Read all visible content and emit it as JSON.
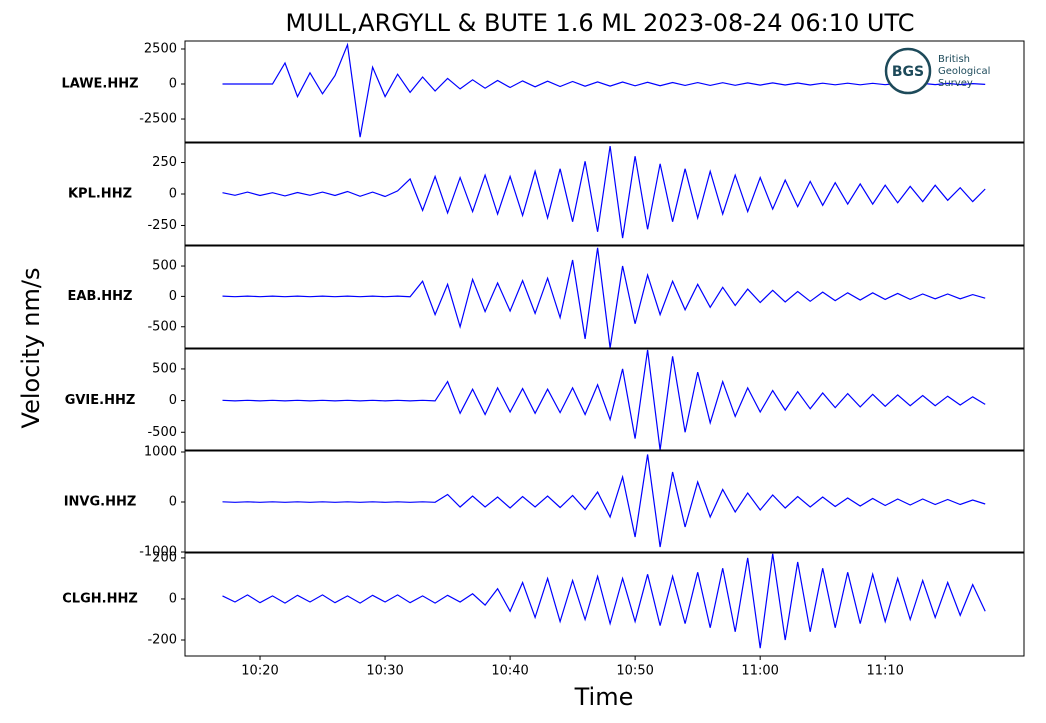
{
  "logo": {
    "initials": "BGS",
    "lines": [
      "British",
      "Geological",
      "Survey"
    ]
  },
  "chart_data": [
    {
      "type": "line",
      "title": "MULL,ARGYLL & BUTE 1.6 ML   2023-08-24 06:10 UTC",
      "ylabel": "Velocity nm/s",
      "x": [
        17,
        18,
        19,
        20,
        21,
        22,
        23,
        24,
        25,
        26,
        27,
        28,
        29,
        30,
        31,
        32,
        33,
        34,
        35,
        36,
        37,
        38,
        39,
        40,
        41,
        42,
        43,
        44,
        45,
        46,
        47,
        48,
        49,
        50,
        51,
        52,
        53,
        54,
        55,
        56,
        57,
        58,
        59,
        60,
        61,
        62,
        63,
        64,
        65,
        66,
        67,
        68,
        69,
        70,
        71,
        72,
        73,
        74,
        75,
        76,
        77,
        78
      ],
      "xlim": [
        14,
        81.1
      ],
      "ylim": [
        -4140,
        3070
      ],
      "yticks": [
        2500,
        0,
        -2500
      ],
      "series": [
        {
          "name": "LAWE.HHZ",
          "color": "#0000ff",
          "values": [
            0,
            0,
            0,
            0,
            0,
            1500,
            -900,
            800,
            -700,
            600,
            2800,
            -3800,
            1200,
            -900,
            700,
            -600,
            500,
            -500,
            400,
            -350,
            300,
            -300,
            250,
            -250,
            220,
            -200,
            200,
            -180,
            180,
            -160,
            150,
            -150,
            140,
            -130,
            120,
            -120,
            110,
            -100,
            100,
            -100,
            90,
            -90,
            80,
            -80,
            80,
            -70,
            70,
            -70,
            60,
            -60,
            60,
            -60,
            50,
            -50,
            50,
            -50,
            40,
            -40,
            40,
            -40,
            30,
            -30
          ]
        }
      ]
    },
    {
      "type": "line",
      "x": [
        17,
        18,
        19,
        20,
        21,
        22,
        23,
        24,
        25,
        26,
        27,
        28,
        29,
        30,
        31,
        32,
        33,
        34,
        35,
        36,
        37,
        38,
        39,
        40,
        41,
        42,
        43,
        44,
        45,
        46,
        47,
        48,
        49,
        50,
        51,
        52,
        53,
        54,
        55,
        56,
        57,
        58,
        59,
        60,
        61,
        62,
        63,
        64,
        65,
        66,
        67,
        68,
        69,
        70,
        71,
        72,
        73,
        74,
        75,
        76,
        77,
        78
      ],
      "xlim": [
        14,
        81.1
      ],
      "ylim": [
        -405,
        405
      ],
      "yticks": [
        250,
        0,
        -250
      ],
      "series": [
        {
          "name": "KPL.HHZ",
          "color": "#0000ff",
          "values": [
            10,
            -10,
            15,
            -12,
            10,
            -15,
            12,
            -10,
            15,
            -12,
            20,
            -18,
            15,
            -20,
            25,
            120,
            -130,
            140,
            -150,
            130,
            -140,
            150,
            -160,
            140,
            -170,
            180,
            -190,
            200,
            -220,
            260,
            -300,
            380,
            -350,
            300,
            -280,
            240,
            -220,
            200,
            -190,
            180,
            -160,
            150,
            -140,
            130,
            -120,
            110,
            -100,
            100,
            -90,
            90,
            -80,
            80,
            -80,
            70,
            -70,
            60,
            -60,
            70,
            -50,
            50,
            -60,
            40
          ]
        }
      ]
    },
    {
      "type": "line",
      "x": [
        17,
        18,
        19,
        20,
        21,
        22,
        23,
        24,
        25,
        26,
        27,
        28,
        29,
        30,
        31,
        32,
        33,
        34,
        35,
        36,
        37,
        38,
        39,
        40,
        41,
        42,
        43,
        44,
        45,
        46,
        47,
        48,
        49,
        50,
        51,
        52,
        53,
        54,
        55,
        56,
        57,
        58,
        59,
        60,
        61,
        62,
        63,
        64,
        65,
        66,
        67,
        68,
        69,
        70,
        71,
        72,
        73,
        74,
        75,
        76,
        77,
        78
      ],
      "xlim": [
        14,
        81.1
      ],
      "ylim": [
        -850,
        830
      ],
      "yticks": [
        500,
        0,
        -500
      ],
      "series": [
        {
          "name": "EAB.HHZ",
          "color": "#0000ff",
          "values": [
            5,
            -5,
            5,
            -5,
            5,
            -5,
            5,
            -5,
            5,
            -5,
            5,
            -5,
            5,
            -5,
            5,
            -5,
            250,
            -300,
            200,
            -500,
            280,
            -250,
            220,
            -240,
            260,
            -280,
            300,
            -350,
            600,
            -700,
            800,
            -850,
            500,
            -450,
            350,
            -300,
            250,
            -220,
            200,
            -180,
            150,
            -150,
            120,
            -100,
            100,
            -90,
            80,
            -80,
            70,
            -70,
            60,
            -60,
            60,
            -50,
            50,
            -50,
            40,
            -40,
            40,
            -40,
            30,
            -30
          ]
        }
      ]
    },
    {
      "type": "line",
      "x": [
        17,
        18,
        19,
        20,
        21,
        22,
        23,
        24,
        25,
        26,
        27,
        28,
        29,
        30,
        31,
        32,
        33,
        34,
        35,
        36,
        37,
        38,
        39,
        40,
        41,
        42,
        43,
        44,
        45,
        46,
        47,
        48,
        49,
        50,
        51,
        52,
        53,
        54,
        55,
        56,
        57,
        58,
        59,
        60,
        61,
        62,
        63,
        64,
        65,
        66,
        67,
        68,
        69,
        70,
        71,
        72,
        73,
        74,
        75,
        76,
        77,
        78
      ],
      "xlim": [
        14,
        81.1
      ],
      "ylim": [
        -780,
        815
      ],
      "yticks": [
        500,
        0,
        -500
      ],
      "series": [
        {
          "name": "GVIE.HHZ",
          "color": "#0000ff",
          "values": [
            5,
            -5,
            5,
            -5,
            5,
            -5,
            5,
            -5,
            5,
            -5,
            5,
            -5,
            5,
            -5,
            5,
            -5,
            5,
            -5,
            300,
            -200,
            180,
            -220,
            200,
            -180,
            190,
            -200,
            180,
            -190,
            200,
            -220,
            250,
            -300,
            500,
            -600,
            800,
            -780,
            700,
            -500,
            450,
            -350,
            300,
            -250,
            200,
            -180,
            160,
            -150,
            140,
            -130,
            120,
            -110,
            110,
            -100,
            100,
            -90,
            90,
            -80,
            80,
            -80,
            70,
            -70,
            60,
            -60
          ]
        }
      ]
    },
    {
      "type": "line",
      "x": [
        17,
        18,
        19,
        20,
        21,
        22,
        23,
        24,
        25,
        26,
        27,
        28,
        29,
        30,
        31,
        32,
        33,
        34,
        35,
        36,
        37,
        38,
        39,
        40,
        41,
        42,
        43,
        44,
        45,
        46,
        47,
        48,
        49,
        50,
        51,
        52,
        53,
        54,
        55,
        56,
        57,
        58,
        59,
        60,
        61,
        62,
        63,
        64,
        65,
        66,
        67,
        68,
        69,
        70,
        71,
        72,
        73,
        74,
        75,
        76,
        77,
        78
      ],
      "xlim": [
        14,
        81.1
      ],
      "ylim": [
        -1000,
        1020
      ],
      "yticks": [
        1000,
        0,
        -1000
      ],
      "series": [
        {
          "name": "INVG.HHZ",
          "color": "#0000ff",
          "values": [
            5,
            -5,
            5,
            -5,
            5,
            -5,
            5,
            -5,
            5,
            -5,
            5,
            -5,
            5,
            -5,
            5,
            -5,
            5,
            -5,
            150,
            -100,
            120,
            -100,
            100,
            -120,
            110,
            -100,
            120,
            -110,
            130,
            -150,
            200,
            -300,
            500,
            -700,
            950,
            -900,
            600,
            -500,
            400,
            -300,
            250,
            -200,
            180,
            -160,
            140,
            -120,
            110,
            -100,
            100,
            -90,
            80,
            -80,
            70,
            -70,
            60,
            -60,
            60,
            -50,
            50,
            -50,
            40,
            -40
          ]
        }
      ]
    },
    {
      "type": "line",
      "xlabel": "Time",
      "x": [
        17,
        18,
        19,
        20,
        21,
        22,
        23,
        24,
        25,
        26,
        27,
        28,
        29,
        30,
        31,
        32,
        33,
        34,
        35,
        36,
        37,
        38,
        39,
        40,
        41,
        42,
        43,
        44,
        45,
        46,
        47,
        48,
        49,
        50,
        51,
        52,
        53,
        54,
        55,
        56,
        57,
        58,
        59,
        60,
        61,
        62,
        63,
        64,
        65,
        66,
        67,
        68,
        69,
        70,
        71,
        72,
        73,
        74,
        75,
        76,
        77,
        78
      ],
      "xlim": [
        14,
        81.1
      ],
      "ylim": [
        -278,
        224
      ],
      "yticks": [
        200,
        0,
        -200
      ],
      "xticks": [
        {
          "value": 20,
          "label": "10:20"
        },
        {
          "value": 30,
          "label": "10:30"
        },
        {
          "value": 40,
          "label": "10:40"
        },
        {
          "value": 50,
          "label": "10:50"
        },
        {
          "value": 60,
          "label": "11:00"
        },
        {
          "value": 70,
          "label": "11:10"
        }
      ],
      "series": [
        {
          "name": "CLGH.HHZ",
          "color": "#0000ff",
          "values": [
            15,
            -15,
            20,
            -18,
            15,
            -20,
            18,
            -15,
            20,
            -18,
            15,
            -20,
            18,
            -15,
            20,
            -18,
            15,
            -20,
            18,
            -15,
            25,
            -30,
            50,
            -60,
            80,
            -90,
            100,
            -110,
            90,
            -100,
            110,
            -120,
            100,
            -110,
            120,
            -130,
            110,
            -120,
            130,
            -140,
            150,
            -160,
            200,
            -240,
            220,
            -200,
            180,
            -160,
            150,
            -140,
            130,
            -120,
            120,
            -110,
            100,
            -100,
            90,
            -90,
            80,
            -80,
            70,
            -60
          ]
        }
      ]
    }
  ]
}
